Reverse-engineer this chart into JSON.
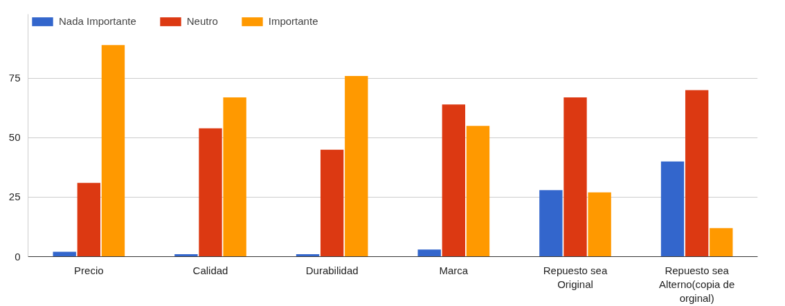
{
  "chart_data": {
    "type": "bar",
    "categories": [
      "Precio",
      "Calidad",
      "Durabilidad",
      "Marca",
      "Repuesto sea Original",
      "Repuesto sea Alterno(copia de orginal)"
    ],
    "series": [
      {
        "name": "Nada Importante",
        "color": "#3366cc",
        "values": [
          2,
          1,
          1,
          3,
          28,
          40
        ]
      },
      {
        "name": "Neutro",
        "color": "#dc3912",
        "values": [
          31,
          54,
          45,
          64,
          67,
          70
        ]
      },
      {
        "name": "Importante",
        "color": "#ff9900",
        "values": [
          89,
          67,
          76,
          55,
          27,
          12
        ]
      }
    ],
    "ylim": [
      0,
      102
    ],
    "yticks": [
      0,
      25,
      50,
      75
    ],
    "grid": "y",
    "legend": "top left"
  }
}
